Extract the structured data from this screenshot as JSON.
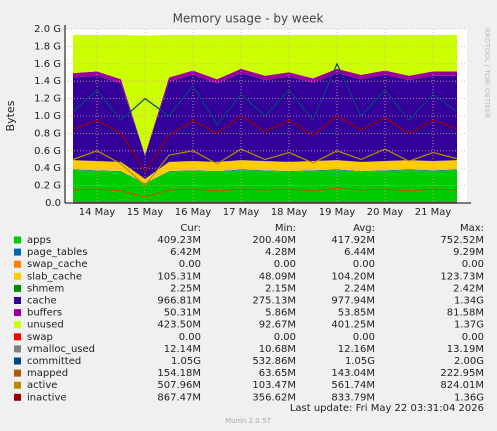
{
  "chart_data": {
    "type": "area",
    "title": "Memory usage - by week",
    "y_label": "Bytes",
    "side_label": "RRDTOOL / TOBI OETIKER",
    "last_update": "Last update: Fri May 22 03:31:04 2026",
    "footer": "Munin 2.0.57",
    "stats_headers": [
      "Cur:",
      "Min:",
      "Avg:",
      "Max:"
    ],
    "categories": [
      null,
      "14 May",
      null,
      "15 May",
      null,
      "16 May",
      null,
      "17 May",
      null,
      "18 May",
      null,
      "19 May",
      null,
      "20 May",
      null,
      "21 May",
      null
    ],
    "ylim": [
      0,
      2.0
    ],
    "yticks": [
      {
        "value": 0,
        "label": "0.0"
      },
      {
        "value": 0.2,
        "label": "0.2 G"
      },
      {
        "value": 0.4,
        "label": "0.4 G"
      },
      {
        "value": 0.6,
        "label": "0.6 G"
      },
      {
        "value": 0.8,
        "label": "0.8 G"
      },
      {
        "value": 1.0,
        "label": "1.0 G"
      },
      {
        "value": 1.2,
        "label": "1.2 G"
      },
      {
        "value": 1.4,
        "label": "1.4 G"
      },
      {
        "value": 1.6,
        "label": "1.6 G"
      },
      {
        "value": 1.8,
        "label": "1.8 G"
      },
      {
        "value": 2.0,
        "label": "2.0 G"
      }
    ],
    "grid": true,
    "series": [
      {
        "name": "apps",
        "color": "#00cc00",
        "style": "area",
        "stats": [
          "409.23M",
          "200.40M",
          "417.92M",
          "752.52M"
        ],
        "values": [
          0.38,
          0.37,
          0.36,
          0.22,
          0.36,
          0.37,
          0.36,
          0.38,
          0.37,
          0.36,
          0.37,
          0.38,
          0.36,
          0.37,
          0.38,
          0.37,
          0.38
        ]
      },
      {
        "name": "page_tables",
        "color": "#0066b3",
        "style": "area",
        "stats": [
          "6.42M",
          "4.28M",
          "6.44M",
          "9.29M"
        ],
        "values": [
          0.006,
          0.006,
          0.006,
          0.006,
          0.006,
          0.006,
          0.006,
          0.006,
          0.006,
          0.006,
          0.006,
          0.006,
          0.006,
          0.006,
          0.006,
          0.006,
          0.006
        ]
      },
      {
        "name": "swap_cache",
        "color": "#ff8000",
        "style": "area",
        "stats": [
          "0.00",
          "0.00",
          "0.00",
          "0.00"
        ],
        "values": [
          0,
          0,
          0,
          0,
          0,
          0,
          0,
          0,
          0,
          0,
          0,
          0,
          0,
          0,
          0,
          0,
          0
        ]
      },
      {
        "name": "slab_cache",
        "color": "#ffcc00",
        "style": "area",
        "stats": [
          "105.31M",
          "48.09M",
          "104.20M",
          "123.73M"
        ],
        "values": [
          0.105,
          0.105,
          0.105,
          0.05,
          0.105,
          0.105,
          0.105,
          0.105,
          0.105,
          0.105,
          0.105,
          0.105,
          0.105,
          0.105,
          0.105,
          0.105,
          0.105
        ]
      },
      {
        "name": "shmem",
        "color": "#008f00",
        "style": "area",
        "stats": [
          "2.25M",
          "2.15M",
          "2.24M",
          "2.42M"
        ],
        "values": [
          0.002,
          0.002,
          0.002,
          0.002,
          0.002,
          0.002,
          0.002,
          0.002,
          0.002,
          0.002,
          0.002,
          0.002,
          0.002,
          0.002,
          0.002,
          0.002,
          0.002
        ]
      },
      {
        "name": "cache",
        "color": "#330099",
        "style": "area",
        "stats": [
          "966.81M",
          "275.13M",
          "977.94M",
          "1.34G"
        ],
        "values": [
          0.95,
          0.98,
          0.9,
          0.27,
          0.92,
          0.99,
          0.9,
          1.0,
          0.93,
          0.98,
          0.9,
          1.0,
          0.95,
          0.99,
          0.92,
          0.98,
          0.97
        ]
      },
      {
        "name": "buffers",
        "color": "#990099",
        "style": "area",
        "stats": [
          "50.31M",
          "5.86M",
          "53.85M",
          "81.58M"
        ],
        "values": [
          0.05,
          0.05,
          0.05,
          0.006,
          0.05,
          0.05,
          0.05,
          0.05,
          0.05,
          0.05,
          0.05,
          0.05,
          0.05,
          0.05,
          0.05,
          0.05,
          0.05
        ]
      },
      {
        "name": "unused",
        "color": "#ccff00",
        "style": "area",
        "stats": [
          "423.50M",
          "92.67M",
          "401.25M",
          "1.37G"
        ],
        "values": [
          0.44,
          0.42,
          0.51,
          1.37,
          0.49,
          0.41,
          0.51,
          0.39,
          0.47,
          0.43,
          0.5,
          0.39,
          0.46,
          0.41,
          0.47,
          0.42,
          0.42
        ]
      },
      {
        "name": "swap",
        "color": "#ff0000",
        "style": "line",
        "stats": [
          "0.00",
          "0.00",
          "0.00",
          "0.00"
        ],
        "values": [
          0,
          0,
          0,
          0,
          0,
          0,
          0,
          0,
          0,
          0,
          0,
          0,
          0,
          0,
          0,
          0,
          0
        ]
      },
      {
        "name": "vmalloc_used",
        "color": "#808080",
        "style": "line",
        "stats": [
          "12.14M",
          "10.68M",
          "12.16M",
          "13.19M"
        ],
        "values": [
          0.012,
          0.012,
          0.012,
          0.012,
          0.012,
          0.012,
          0.012,
          0.012,
          0.012,
          0.012,
          0.012,
          0.012,
          0.012,
          0.012,
          0.012,
          0.012,
          0.012
        ]
      },
      {
        "name": "committed",
        "color": "#00487d",
        "style": "line",
        "stats": [
          "1.05G",
          "532.86M",
          "1.05G",
          "2.00G"
        ],
        "values": [
          1.05,
          1.3,
          0.95,
          1.2,
          1.0,
          1.35,
          0.9,
          1.25,
          1.0,
          1.3,
          0.95,
          1.6,
          1.0,
          1.3,
          0.95,
          1.25,
          1.05
        ]
      },
      {
        "name": "mapped",
        "color": "#b35a00",
        "style": "line",
        "stats": [
          "154.18M",
          "63.65M",
          "143.04M",
          "222.95M"
        ],
        "values": [
          0.15,
          0.16,
          0.14,
          0.07,
          0.15,
          0.16,
          0.14,
          0.16,
          0.15,
          0.16,
          0.14,
          0.17,
          0.15,
          0.16,
          0.14,
          0.16,
          0.15
        ]
      },
      {
        "name": "active",
        "color": "#b38f00",
        "style": "line",
        "stats": [
          "507.96M",
          "103.47M",
          "561.74M",
          "824.01M"
        ],
        "values": [
          0.5,
          0.6,
          0.45,
          0.2,
          0.55,
          0.6,
          0.45,
          0.62,
          0.5,
          0.58,
          0.46,
          0.6,
          0.5,
          0.62,
          0.48,
          0.58,
          0.51
        ]
      },
      {
        "name": "inactive",
        "color": "#990000",
        "style": "line",
        "stats": [
          "867.47M",
          "356.62M",
          "833.79M",
          "1.36G"
        ],
        "values": [
          0.85,
          0.95,
          0.8,
          0.36,
          0.78,
          0.95,
          0.8,
          1.0,
          0.82,
          0.95,
          0.78,
          1.0,
          0.84,
          0.98,
          0.8,
          0.95,
          0.85
        ]
      }
    ]
  }
}
